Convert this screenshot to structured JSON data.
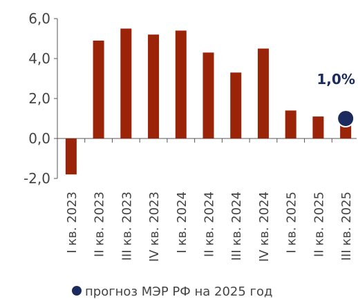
{
  "chart_data": {
    "type": "bar",
    "categories": [
      "I кв. 2023",
      "II кв. 2023",
      "III кв. 2023",
      "IV кв. 2023",
      "I кв. 2024",
      "II кв. 2024",
      "III кв. 2024",
      "IV кв. 2024",
      "I кв. 2025",
      "II кв. 2025",
      "III кв. 2025"
    ],
    "series": [
      {
        "color": "#9b2308",
        "values": [
          -1.8,
          4.9,
          5.5,
          5.2,
          5.4,
          4.3,
          3.3,
          4.5,
          1.4,
          1.1,
          0.7
        ]
      },
      {
        "name": "прогноз МЭР РФ на 2025 год",
        "type": "marker",
        "color": "#1c2b5e",
        "values": [
          null,
          null,
          null,
          null,
          null,
          null,
          null,
          null,
          null,
          null,
          1.0
        ],
        "value_labels": [
          null,
          null,
          null,
          null,
          null,
          null,
          null,
          null,
          null,
          null,
          "1,0%"
        ]
      }
    ],
    "ylim": [
      -2,
      6
    ],
    "yticks": [
      {
        "value": -2,
        "label": "-2,0"
      },
      {
        "value": 0,
        "label": "0,0"
      },
      {
        "value": 2,
        "label": "2,0"
      },
      {
        "value": 4,
        "label": "4,0"
      },
      {
        "value": 6,
        "label": "6,0"
      }
    ]
  }
}
